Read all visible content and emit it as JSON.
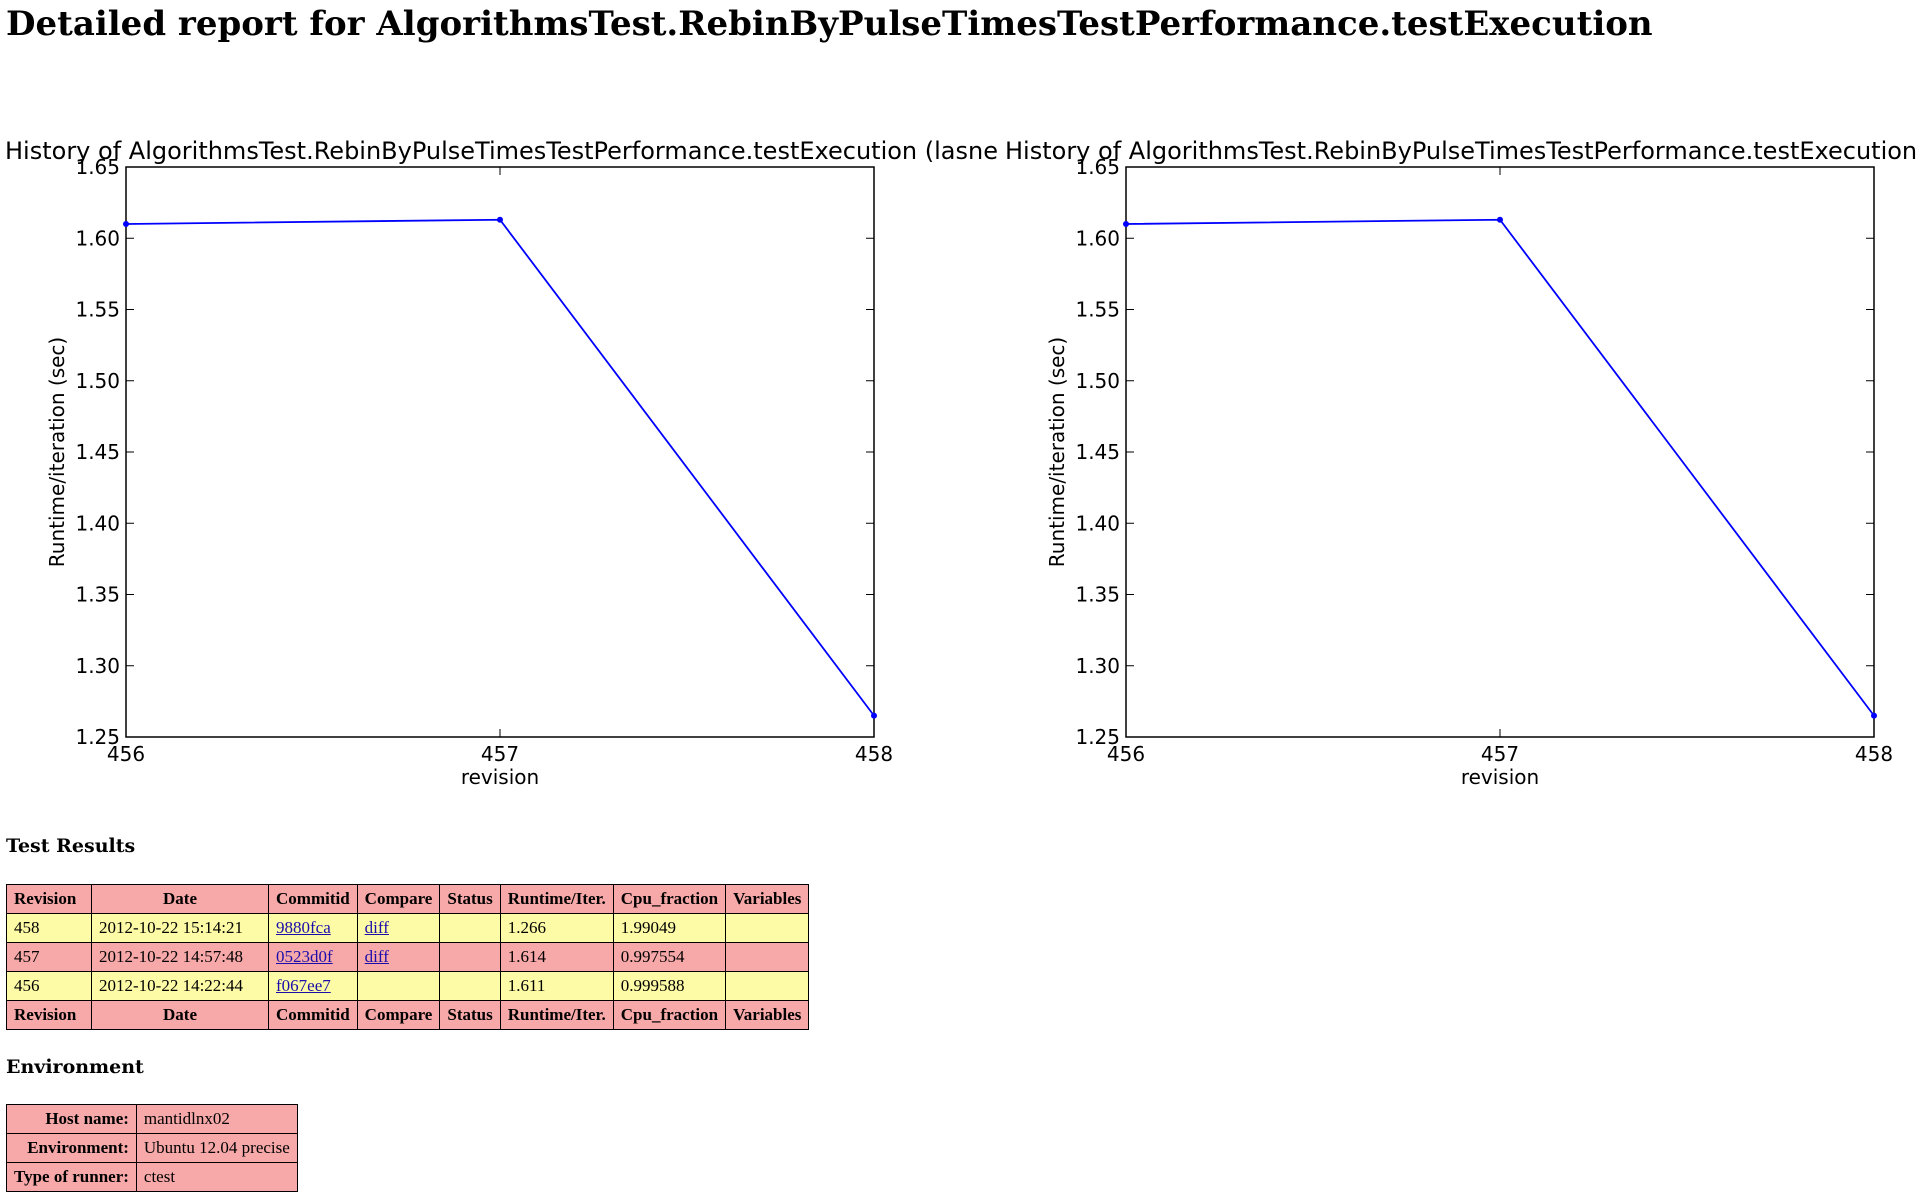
{
  "page": {
    "title": "Detailed report for AlgorithmsTest.RebinByPulseTimesTestPerformance.testExecution"
  },
  "charts": [
    {
      "title": "History of AlgorithmsTest.RebinByPulseTimesTestPerformance.testExecution (lasne",
      "xlabel": "revision",
      "ylabel": "Runtime/iteration (sec)"
    },
    {
      "title": "History of AlgorithmsTest.RebinByPulseTimesTestPerformance.testExecution",
      "xlabel": "revision",
      "ylabel": "Runtime/iteration (sec)"
    }
  ],
  "chart_data": [
    {
      "type": "line",
      "title": "History of AlgorithmsTest.RebinByPulseTimesTestPerformance.testExecution (lasne",
      "xlabel": "revision",
      "ylabel": "Runtime/iteration (sec)",
      "x": [
        456,
        457,
        458
      ],
      "series": [
        {
          "values": [
            1.61,
            1.613,
            1.265
          ],
          "color": "#0000ff"
        }
      ],
      "xlim": [
        456,
        458
      ],
      "ylim": [
        1.25,
        1.65
      ],
      "xticks": [
        "456",
        "457",
        "458"
      ],
      "yticks": [
        "1.25",
        "1.30",
        "1.35",
        "1.40",
        "1.45",
        "1.50",
        "1.55",
        "1.60",
        "1.65"
      ],
      "grid": false
    },
    {
      "type": "line",
      "title": "History of AlgorithmsTest.RebinByPulseTimesTestPerformance.testExecution",
      "xlabel": "revision",
      "ylabel": "Runtime/iteration (sec)",
      "x": [
        456,
        457,
        458
      ],
      "series": [
        {
          "values": [
            1.61,
            1.613,
            1.265
          ],
          "color": "#0000ff"
        }
      ],
      "xlim": [
        456,
        458
      ],
      "ylim": [
        1.25,
        1.65
      ],
      "xticks": [
        "456",
        "457",
        "458"
      ],
      "yticks": [
        "1.25",
        "1.30",
        "1.35",
        "1.40",
        "1.45",
        "1.50",
        "1.55",
        "1.60",
        "1.65"
      ],
      "grid": false
    }
  ],
  "results": {
    "heading": "Test Results",
    "columns": [
      "Revision",
      "Date",
      "Commitid",
      "Compare",
      "Status",
      "Runtime/Iter.",
      "Cpu_fraction",
      "Variables"
    ],
    "rows": [
      {
        "revision": "458",
        "date": "2012-10-22 15:14:21",
        "commitid": "9880fca",
        "compare": "diff",
        "status": "",
        "runtime": "1.266",
        "cpu_fraction": "1.99049",
        "variables": "",
        "row_color": "yellow"
      },
      {
        "revision": "457",
        "date": "2012-10-22 14:57:48",
        "commitid": "0523d0f",
        "compare": "diff",
        "status": "",
        "runtime": "1.614",
        "cpu_fraction": "0.997554",
        "variables": "",
        "row_color": "pink"
      },
      {
        "revision": "456",
        "date": "2012-10-22 14:22:44",
        "commitid": "f067ee7",
        "compare": "",
        "status": "",
        "runtime": "1.611",
        "cpu_fraction": "0.999588",
        "variables": "",
        "row_color": "yellow"
      }
    ]
  },
  "environment": {
    "heading": "Environment",
    "rows": [
      {
        "label": "Host name:",
        "value": "mantidlnx02"
      },
      {
        "label": "Environment:",
        "value": "Ubuntu 12.04 precise"
      },
      {
        "label": "Type of runner:",
        "value": "ctest"
      }
    ]
  },
  "colors": {
    "header_bg": "#f7a8a8",
    "row_pass": "#fdfba6",
    "row_fail": "#f7a8a8",
    "line": "#0000ff",
    "link": "#1a0dab"
  }
}
